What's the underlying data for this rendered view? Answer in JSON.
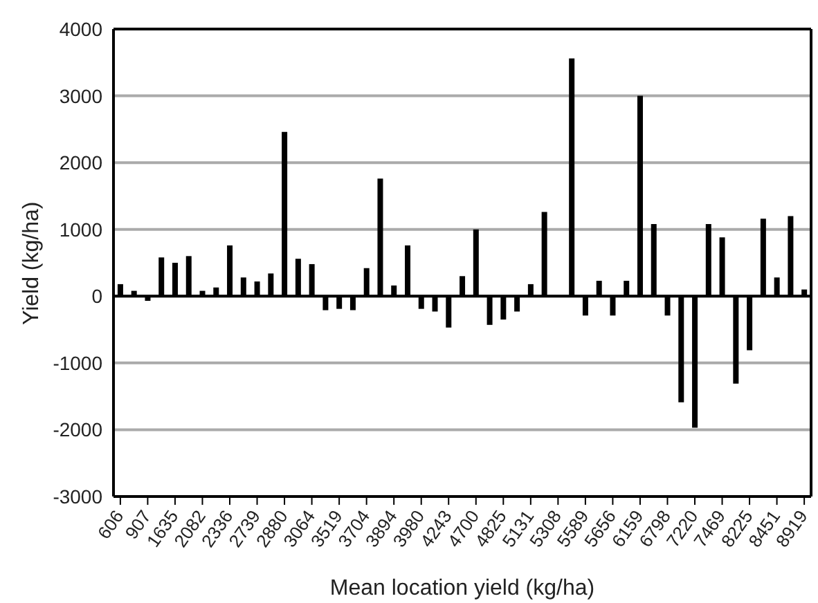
{
  "chart_data": {
    "type": "bar",
    "xlabel": "Mean location yield (kg/ha)",
    "ylabel": "Yield (kg/ha)",
    "categories": [
      "606",
      null,
      "907",
      null,
      "1635",
      null,
      "2082",
      null,
      "2336",
      null,
      "2739",
      null,
      "2880",
      null,
      "3064",
      null,
      "3519",
      null,
      "3704",
      null,
      "3894",
      null,
      "3980",
      null,
      "4243",
      null,
      "4700",
      null,
      "4825",
      null,
      "5131",
      null,
      "5308",
      null,
      "5589",
      null,
      "5656",
      null,
      "6159",
      null,
      "6798",
      null,
      "7220",
      null,
      "7469",
      null,
      "8225",
      null,
      "8451",
      null,
      "8919"
    ],
    "values": [
      180,
      80,
      -70,
      580,
      500,
      600,
      80,
      130,
      760,
      280,
      220,
      340,
      2460,
      560,
      480,
      -210,
      -190,
      -210,
      420,
      1760,
      160,
      760,
      -190,
      -230,
      -470,
      300,
      1000,
      -430,
      -350,
      -230,
      180,
      1260,
      0,
      3560,
      -290,
      230,
      -290,
      230,
      3000,
      1080,
      -290,
      -1590,
      -1970,
      1080,
      880,
      -1310,
      -810,
      1160,
      280,
      1200,
      100
    ],
    "color": "#000000",
    "ylim": [
      -3000,
      4000
    ],
    "yticks": [
      -3000,
      -2000,
      -1000,
      0,
      1000,
      2000,
      3000,
      4000
    ],
    "grid": "y"
  }
}
